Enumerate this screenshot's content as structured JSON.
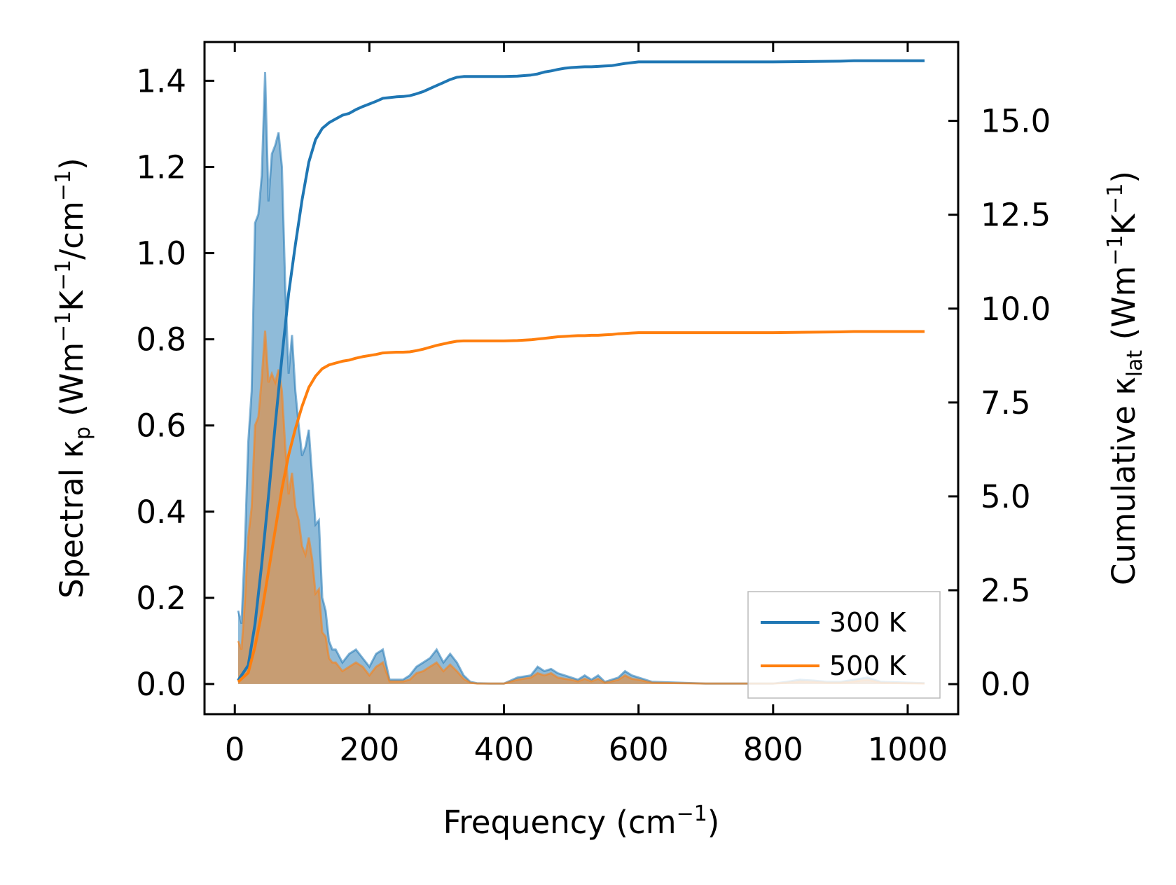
{
  "chart_data": {
    "type": "line",
    "xlabel": {
      "text": "Frequency (cm",
      "sup": "−1",
      "tail": ")"
    },
    "ylabel_left": {
      "main": "Spectral κ",
      "sub": "p",
      "mid": " (Wm",
      "sup1": "−1",
      "k": "K",
      "sup2": "−1",
      "slash": "/cm",
      "sup3": "−1",
      "tail": ")"
    },
    "ylabel_right": {
      "main": "Cumulative κ",
      "sub": "lat",
      "mid": " (Wm",
      "sup1": "−1",
      "k": "K",
      "sup2": "−1",
      "tail": ")"
    },
    "xlim": [
      -45,
      1075
    ],
    "ylim_left": [
      -0.07,
      1.49
    ],
    "ylim_right": [
      -0.8,
      17.1
    ],
    "x_ticks": [
      0,
      200,
      400,
      600,
      800,
      1000
    ],
    "x_tick_labels": [
      "0",
      "200",
      "400",
      "600",
      "800",
      "1000"
    ],
    "y_left_ticks": [
      0.0,
      0.2,
      0.4,
      0.6,
      0.8,
      1.0,
      1.2,
      1.4
    ],
    "y_left_tick_labels": [
      "0.0",
      "0.2",
      "0.4",
      "0.6",
      "0.8",
      "1.0",
      "1.2",
      "1.4"
    ],
    "y_right_ticks": [
      0.0,
      2.5,
      5.0,
      7.5,
      10.0,
      12.5,
      15.0
    ],
    "y_right_tick_labels": [
      "0.0",
      "2.5",
      "5.0",
      "7.5",
      "10.0",
      "12.5",
      "15.0"
    ],
    "legend_position": "bottom-right",
    "colors": {
      "s300": "#1f77b4",
      "s500": "#ff7f0e",
      "fill300": "#1f77b4",
      "fill500": "#ff7f0e"
    },
    "spectral": {
      "x": [
        5,
        10,
        15,
        20,
        25,
        30,
        35,
        40,
        45,
        50,
        55,
        60,
        65,
        70,
        75,
        80,
        85,
        90,
        95,
        100,
        105,
        110,
        115,
        120,
        125,
        130,
        135,
        140,
        145,
        150,
        160,
        170,
        180,
        190,
        200,
        210,
        220,
        230,
        240,
        250,
        260,
        270,
        280,
        290,
        300,
        310,
        320,
        330,
        340,
        350,
        360,
        380,
        400,
        420,
        440,
        450,
        460,
        470,
        480,
        490,
        500,
        510,
        520,
        530,
        540,
        550,
        560,
        570,
        580,
        590,
        600,
        620,
        700,
        800,
        820,
        840,
        860,
        880,
        900,
        920,
        940,
        960,
        1025
      ],
      "series": [
        {
          "name": "300 K",
          "values": [
            0.17,
            0.14,
            0.32,
            0.56,
            0.68,
            1.07,
            1.09,
            1.18,
            1.42,
            1.12,
            1.23,
            1.25,
            1.28,
            1.2,
            0.92,
            0.72,
            0.81,
            0.68,
            0.6,
            0.53,
            0.55,
            0.59,
            0.48,
            0.37,
            0.38,
            0.2,
            0.17,
            0.1,
            0.08,
            0.08,
            0.05,
            0.07,
            0.08,
            0.06,
            0.04,
            0.07,
            0.08,
            0.01,
            0.01,
            0.01,
            0.02,
            0.04,
            0.05,
            0.06,
            0.08,
            0.05,
            0.07,
            0.05,
            0.02,
            0.005,
            0.002,
            0.001,
            0.001,
            0.015,
            0.02,
            0.04,
            0.03,
            0.035,
            0.025,
            0.02,
            0.015,
            0.01,
            0.02,
            0.01,
            0.02,
            0.005,
            0.01,
            0.015,
            0.03,
            0.02,
            0.015,
            0.005,
            0.001,
            0.001,
            0.005,
            0.01,
            0.008,
            0.005,
            0.005,
            0.01,
            0.015,
            0.005,
            0.002
          ]
        },
        {
          "name": "500 K",
          "values": [
            0.1,
            0.08,
            0.19,
            0.34,
            0.41,
            0.6,
            0.62,
            0.71,
            0.82,
            0.7,
            0.72,
            0.7,
            0.73,
            0.68,
            0.55,
            0.44,
            0.49,
            0.41,
            0.38,
            0.32,
            0.3,
            0.34,
            0.29,
            0.21,
            0.22,
            0.12,
            0.11,
            0.06,
            0.05,
            0.05,
            0.03,
            0.04,
            0.05,
            0.04,
            0.02,
            0.04,
            0.05,
            0.006,
            0.006,
            0.006,
            0.01,
            0.025,
            0.03,
            0.04,
            0.05,
            0.03,
            0.045,
            0.03,
            0.012,
            0.003,
            0.001,
            0.001,
            0.001,
            0.01,
            0.015,
            0.025,
            0.02,
            0.025,
            0.015,
            0.012,
            0.01,
            0.006,
            0.012,
            0.006,
            0.012,
            0.003,
            0.006,
            0.01,
            0.02,
            0.012,
            0.01,
            0.003,
            0.001,
            0.001,
            0.003,
            0.006,
            0.005,
            0.003,
            0.003,
            0.006,
            0.01,
            0.003,
            0.001
          ]
        }
      ]
    },
    "cumulative": {
      "x": [
        5,
        20,
        30,
        40,
        50,
        60,
        70,
        80,
        90,
        100,
        110,
        120,
        130,
        140,
        150,
        160,
        170,
        180,
        190,
        200,
        210,
        220,
        230,
        240,
        250,
        260,
        270,
        280,
        290,
        300,
        310,
        320,
        330,
        340,
        350,
        370,
        400,
        420,
        440,
        450,
        460,
        470,
        480,
        490,
        500,
        510,
        520,
        530,
        540,
        550,
        560,
        570,
        580,
        590,
        600,
        620,
        700,
        800,
        900,
        920,
        940,
        1025
      ],
      "series": [
        {
          "name": "300 K",
          "values": [
            0.1,
            0.5,
            1.6,
            3.2,
            5.0,
            6.9,
            8.7,
            10.4,
            11.7,
            12.9,
            13.9,
            14.5,
            14.8,
            14.95,
            15.05,
            15.15,
            15.2,
            15.3,
            15.38,
            15.45,
            15.52,
            15.6,
            15.62,
            15.64,
            15.65,
            15.67,
            15.72,
            15.78,
            15.86,
            15.94,
            16.02,
            16.1,
            16.16,
            16.18,
            16.18,
            16.18,
            16.18,
            16.19,
            16.22,
            16.25,
            16.3,
            16.33,
            16.37,
            16.4,
            16.42,
            16.43,
            16.44,
            16.44,
            16.45,
            16.46,
            16.47,
            16.5,
            16.53,
            16.55,
            16.57,
            16.57,
            16.57,
            16.57,
            16.59,
            16.6,
            16.6,
            16.6
          ]
        },
        {
          "name": "500 K",
          "values": [
            0.06,
            0.3,
            1.0,
            1.9,
            3.0,
            4.1,
            5.2,
            6.1,
            6.8,
            7.4,
            7.9,
            8.2,
            8.4,
            8.5,
            8.55,
            8.6,
            8.63,
            8.68,
            8.72,
            8.75,
            8.78,
            8.82,
            8.83,
            8.84,
            8.84,
            8.85,
            8.88,
            8.92,
            8.97,
            9.02,
            9.06,
            9.1,
            9.13,
            9.14,
            9.14,
            9.14,
            9.14,
            9.15,
            9.17,
            9.19,
            9.21,
            9.23,
            9.25,
            9.26,
            9.27,
            9.28,
            9.28,
            9.29,
            9.29,
            9.3,
            9.31,
            9.33,
            9.34,
            9.35,
            9.36,
            9.36,
            9.36,
            9.36,
            9.38,
            9.39,
            9.39,
            9.39
          ]
        }
      ]
    },
    "legend": [
      {
        "label": "300 K",
        "color": "#1f77b4"
      },
      {
        "label": "500 K",
        "color": "#ff7f0e"
      }
    ]
  }
}
